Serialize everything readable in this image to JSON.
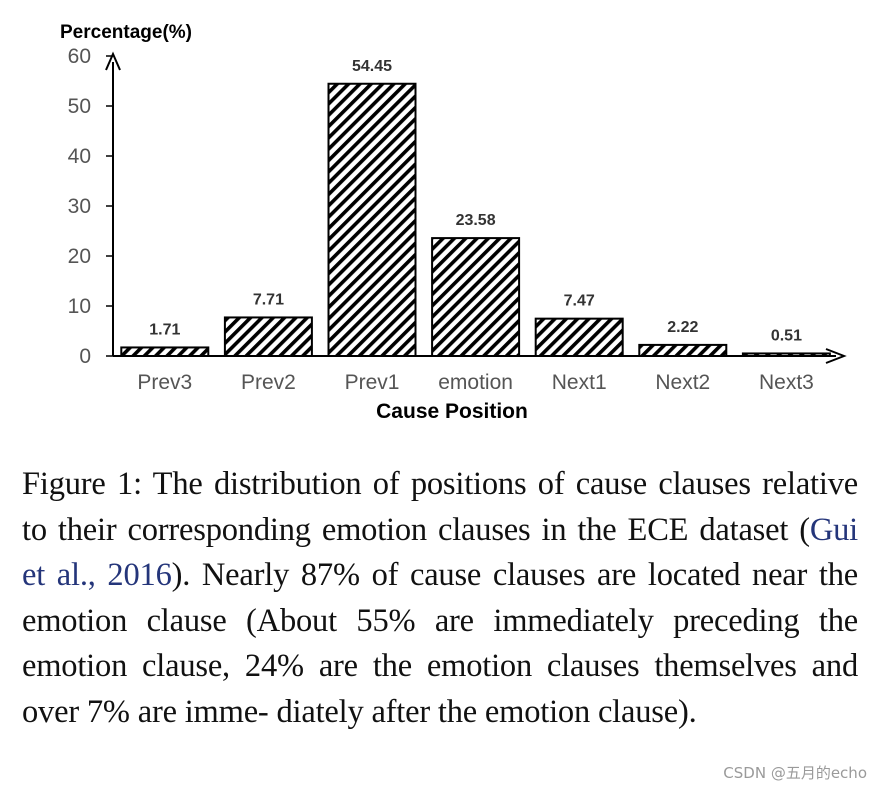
{
  "chart_data": {
    "type": "bar",
    "title": "",
    "xlabel": "Cause Position",
    "ylabel": "Percentage(%)",
    "ylim": [
      0,
      60
    ],
    "yticks": [
      0,
      10,
      20,
      30,
      40,
      50,
      60
    ],
    "grid": false,
    "fill_pattern": "diagonal-hatch",
    "bar_color": "#000000",
    "categories": [
      "Prev3",
      "Prev2",
      "Prev1",
      "emotion",
      "Next1",
      "Next2",
      "Next3"
    ],
    "values": [
      1.71,
      7.71,
      54.45,
      23.58,
      7.47,
      2.22,
      0.51
    ],
    "value_labels": [
      "1.71",
      "7.71",
      "54.45",
      "23.58",
      "7.47",
      "2.22",
      "0.51"
    ]
  },
  "caption": {
    "label": "Figure 1:",
    "text_before": " The distribution of positions of cause clauses relative to their corresponding emotion clauses in the ECE dataset (",
    "citation": "Gui et al., 2016",
    "text_after": "). Nearly 87% of cause clauses are located near the emotion clause (About 55% are immediately preceding the emotion clause, 24% are the emotion clauses themselves and over 7% are imme- diately after the emotion clause)."
  },
  "watermark": "CSDN @五月的echo"
}
